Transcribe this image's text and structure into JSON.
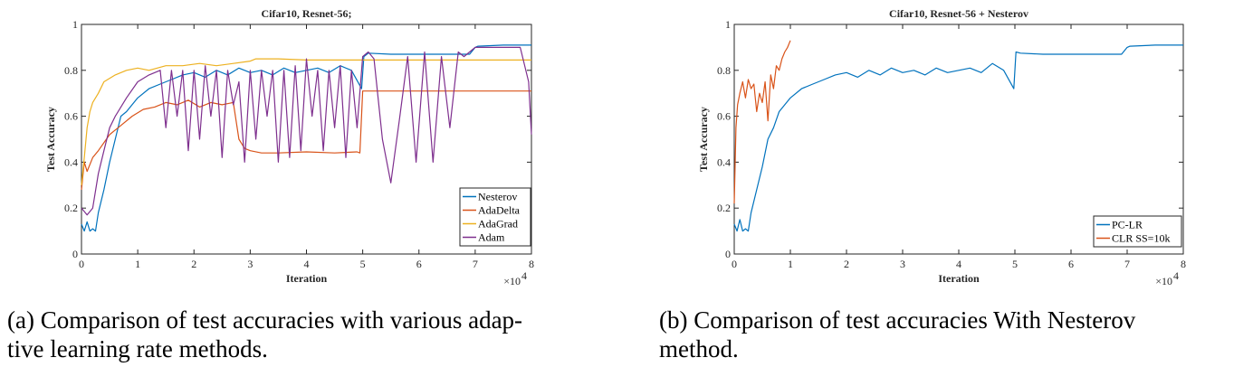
{
  "chart_data": [
    {
      "type": "line",
      "title": "Cifar10, Resnet-56;",
      "xlabel": "Iteration",
      "ylabel": "Test Accuracy",
      "x_exponent_label": "×10",
      "x_exponent_power": "4",
      "xlim": [
        0,
        8
      ],
      "ylim": [
        0,
        1
      ],
      "xticks": [
        "0",
        "1",
        "2",
        "3",
        "4",
        "5",
        "6",
        "7",
        "8"
      ],
      "yticks": [
        "0",
        "0.2",
        "0.4",
        "0.6",
        "0.8",
        "1"
      ],
      "grid": false,
      "legend_position": "bottom-right",
      "series": [
        {
          "name": "Nesterov",
          "color": "#0072BD",
          "x": [
            0,
            0.05,
            0.1,
            0.15,
            0.2,
            0.25,
            0.3,
            0.4,
            0.5,
            0.6,
            0.7,
            0.8,
            0.9,
            1.0,
            1.2,
            1.4,
            1.6,
            1.8,
            2.0,
            2.2,
            2.4,
            2.6,
            2.8,
            3.0,
            3.2,
            3.4,
            3.6,
            3.8,
            4.0,
            4.2,
            4.4,
            4.6,
            4.8,
            4.98,
            5.02,
            5.1,
            5.5,
            6.0,
            6.5,
            6.9,
            7.0,
            7.05,
            7.5,
            8.0
          ],
          "y": [
            0.13,
            0.1,
            0.14,
            0.1,
            0.11,
            0.1,
            0.18,
            0.28,
            0.4,
            0.5,
            0.6,
            0.62,
            0.65,
            0.68,
            0.72,
            0.74,
            0.76,
            0.78,
            0.79,
            0.77,
            0.8,
            0.78,
            0.81,
            0.79,
            0.8,
            0.78,
            0.81,
            0.79,
            0.8,
            0.81,
            0.79,
            0.82,
            0.8,
            0.72,
            0.86,
            0.875,
            0.87,
            0.87,
            0.87,
            0.87,
            0.9,
            0.905,
            0.91,
            0.91
          ]
        },
        {
          "name": "AdaDelta",
          "color": "#D95319",
          "x": [
            0,
            0.05,
            0.1,
            0.2,
            0.3,
            0.5,
            0.7,
            0.9,
            1.1,
            1.3,
            1.5,
            1.7,
            1.9,
            2.1,
            2.3,
            2.5,
            2.7,
            2.75,
            2.8,
            2.9,
            3.0,
            3.2,
            3.5,
            4.0,
            4.5,
            4.9,
            4.95,
            5.0,
            5.5,
            6.0,
            6.5,
            7.0,
            7.5,
            8.0
          ],
          "y": [
            0.28,
            0.4,
            0.36,
            0.42,
            0.45,
            0.52,
            0.56,
            0.6,
            0.63,
            0.64,
            0.66,
            0.65,
            0.67,
            0.64,
            0.66,
            0.65,
            0.66,
            0.58,
            0.5,
            0.46,
            0.45,
            0.44,
            0.44,
            0.445,
            0.44,
            0.445,
            0.44,
            0.71,
            0.71,
            0.71,
            0.71,
            0.71,
            0.71,
            0.71
          ]
        },
        {
          "name": "AdaGrad",
          "color": "#EDB120",
          "x": [
            0,
            0.05,
            0.1,
            0.15,
            0.2,
            0.3,
            0.4,
            0.6,
            0.8,
            1.0,
            1.2,
            1.5,
            1.8,
            2.1,
            2.4,
            2.7,
            3.0,
            3.1,
            3.5,
            4.0,
            4.5,
            5.0,
            5.5,
            6.0,
            6.5,
            7.0,
            7.5,
            8.0
          ],
          "y": [
            0.3,
            0.42,
            0.55,
            0.62,
            0.66,
            0.7,
            0.75,
            0.78,
            0.8,
            0.81,
            0.8,
            0.82,
            0.82,
            0.83,
            0.82,
            0.83,
            0.84,
            0.85,
            0.85,
            0.845,
            0.845,
            0.845,
            0.845,
            0.845,
            0.845,
            0.845,
            0.845,
            0.845
          ]
        },
        {
          "name": "Adam",
          "color": "#7E2F8E",
          "x": [
            0,
            0.1,
            0.2,
            0.3,
            0.4,
            0.5,
            0.6,
            0.8,
            1.0,
            1.2,
            1.4,
            1.5,
            1.6,
            1.7,
            1.8,
            1.9,
            2.0,
            2.1,
            2.2,
            2.3,
            2.4,
            2.5,
            2.6,
            2.7,
            2.8,
            2.9,
            3.0,
            3.1,
            3.2,
            3.3,
            3.4,
            3.5,
            3.6,
            3.7,
            3.8,
            3.9,
            4.0,
            4.1,
            4.2,
            4.3,
            4.4,
            4.5,
            4.6,
            4.7,
            4.8,
            4.9,
            5.0,
            5.1,
            5.2,
            5.35,
            5.5,
            5.65,
            5.8,
            5.95,
            6.1,
            6.25,
            6.4,
            6.55,
            6.7,
            6.8,
            7.0,
            7.5,
            7.8,
            7.95,
            8.0
          ],
          "y": [
            0.2,
            0.17,
            0.2,
            0.35,
            0.45,
            0.55,
            0.6,
            0.68,
            0.75,
            0.78,
            0.8,
            0.55,
            0.8,
            0.6,
            0.8,
            0.45,
            0.8,
            0.5,
            0.82,
            0.6,
            0.8,
            0.42,
            0.8,
            0.65,
            0.75,
            0.4,
            0.8,
            0.5,
            0.8,
            0.6,
            0.8,
            0.4,
            0.8,
            0.42,
            0.82,
            0.45,
            0.85,
            0.6,
            0.8,
            0.45,
            0.8,
            0.55,
            0.82,
            0.42,
            0.8,
            0.55,
            0.86,
            0.88,
            0.85,
            0.5,
            0.31,
            0.58,
            0.86,
            0.4,
            0.88,
            0.4,
            0.86,
            0.55,
            0.88,
            0.86,
            0.9,
            0.9,
            0.9,
            0.75,
            0.52
          ]
        }
      ]
    },
    {
      "type": "line",
      "title": "Cifar10, Resnet-56 + Nesterov",
      "xlabel": "Iteration",
      "ylabel": "Test Accuracy",
      "x_exponent_label": "×10",
      "x_exponent_power": "4",
      "xlim": [
        0,
        8
      ],
      "ylim": [
        0,
        1
      ],
      "xticks": [
        "0",
        "1",
        "2",
        "3",
        "4",
        "5",
        "6",
        "7",
        "8"
      ],
      "yticks": [
        "0",
        "0.2",
        "0.4",
        "0.6",
        "0.8",
        "1"
      ],
      "grid": false,
      "legend_position": "bottom-right",
      "series": [
        {
          "name": "PC-LR",
          "color": "#0072BD",
          "x": [
            0,
            0.05,
            0.1,
            0.15,
            0.2,
            0.25,
            0.3,
            0.4,
            0.5,
            0.6,
            0.7,
            0.8,
            0.9,
            1.0,
            1.2,
            1.4,
            1.6,
            1.8,
            2.0,
            2.2,
            2.4,
            2.6,
            2.8,
            3.0,
            3.2,
            3.4,
            3.6,
            3.8,
            4.0,
            4.2,
            4.4,
            4.6,
            4.8,
            4.98,
            5.02,
            5.1,
            5.5,
            6.0,
            6.5,
            6.9,
            7.0,
            7.05,
            7.5,
            8.0
          ],
          "y": [
            0.13,
            0.1,
            0.15,
            0.1,
            0.11,
            0.1,
            0.18,
            0.28,
            0.38,
            0.5,
            0.55,
            0.62,
            0.65,
            0.68,
            0.72,
            0.74,
            0.76,
            0.78,
            0.79,
            0.77,
            0.8,
            0.78,
            0.81,
            0.79,
            0.8,
            0.78,
            0.81,
            0.79,
            0.8,
            0.81,
            0.79,
            0.83,
            0.8,
            0.72,
            0.88,
            0.875,
            0.87,
            0.87,
            0.87,
            0.87,
            0.9,
            0.905,
            0.91,
            0.91
          ]
        },
        {
          "name": "CLR SS=10k",
          "color": "#D95319",
          "x": [
            0,
            0.03,
            0.06,
            0.1,
            0.15,
            0.2,
            0.25,
            0.3,
            0.35,
            0.4,
            0.45,
            0.5,
            0.55,
            0.6,
            0.65,
            0.7,
            0.75,
            0.8,
            0.85,
            0.9,
            0.95,
            1.0
          ],
          "y": [
            0.22,
            0.55,
            0.65,
            0.7,
            0.75,
            0.68,
            0.76,
            0.72,
            0.74,
            0.62,
            0.7,
            0.66,
            0.75,
            0.58,
            0.78,
            0.72,
            0.82,
            0.8,
            0.85,
            0.88,
            0.9,
            0.93
          ]
        }
      ]
    }
  ],
  "captions": {
    "a_line1": "(a) Comparison of test accuracies with various adap-",
    "a_line2": "tive learning rate methods.",
    "b_line1": "(b) Comparison of test accuracies With Nesterov",
    "b_line2": "method."
  }
}
